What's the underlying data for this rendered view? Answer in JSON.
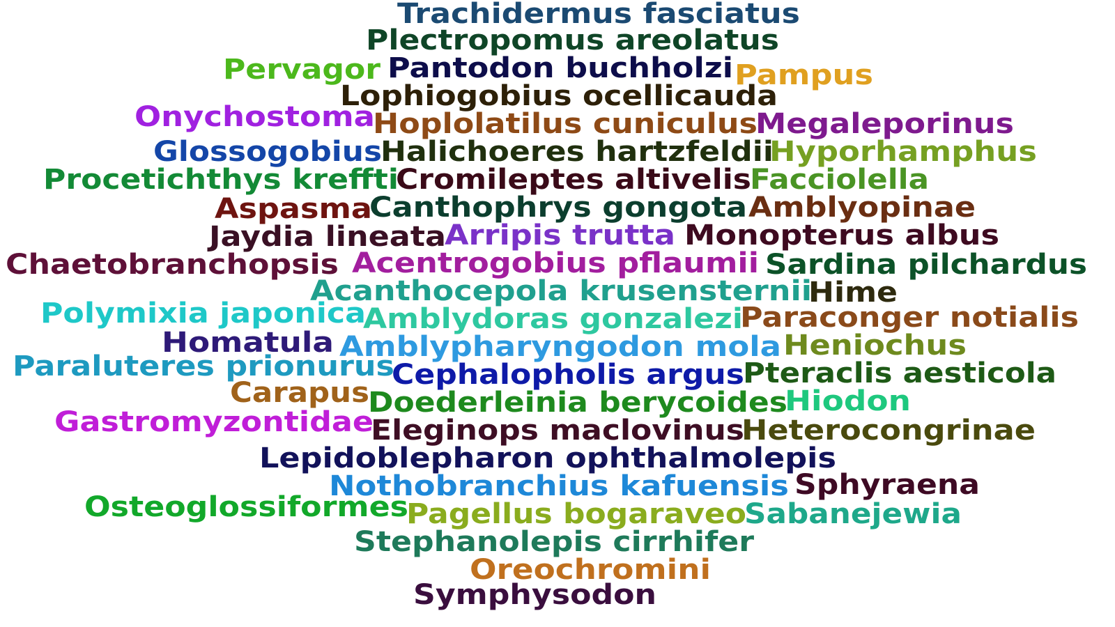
{
  "cloud": {
    "words": [
      {
        "text": "Trachidermus fasciatus",
        "color": "#1b4a72"
      },
      {
        "text": "Plectropomus areolatus",
        "color": "#0f4527"
      },
      {
        "text": "Pervagor",
        "color": "#4cb81c"
      },
      {
        "text": "Pantodon buchholzi",
        "color": "#0d0d4a"
      },
      {
        "text": "Pampus",
        "color": "#e0a020"
      },
      {
        "text": "Lophiogobius ocellicauda",
        "color": "#2d2008"
      },
      {
        "text": "Onychostoma",
        "color": "#a021e0"
      },
      {
        "text": "Hoplolatilus cuniculus",
        "color": "#8e4a16"
      },
      {
        "text": "Megaleporinus",
        "color": "#7e1a8e"
      },
      {
        "text": "Glossogobius",
        "color": "#1446a8"
      },
      {
        "text": "Halichoeres hartzfeldii",
        "color": "#20300e"
      },
      {
        "text": "Hyporhamphus",
        "color": "#76a022"
      },
      {
        "text": "Procetichthys kreffti",
        "color": "#138a36"
      },
      {
        "text": "Cromileptes altivelis",
        "color": "#3a0a18"
      },
      {
        "text": "Facciolella",
        "color": "#4a9424"
      },
      {
        "text": "Aspasma",
        "color": "#6e1410"
      },
      {
        "text": "Canthophrys gongota",
        "color": "#0c3e2e"
      },
      {
        "text": "Amblyopinae",
        "color": "#6a2e12"
      },
      {
        "text": "Jaydia lineata",
        "color": "#3a1024"
      },
      {
        "text": "Arripis trutta",
        "color": "#7a32c8"
      },
      {
        "text": "Monopterus albus",
        "color": "#3e0a20"
      },
      {
        "text": "Chaetobranchopsis",
        "color": "#5e1038"
      },
      {
        "text": "Acentrogobius pflaumii",
        "color": "#a21e9e"
      },
      {
        "text": "Sardina pilchardus",
        "color": "#0c5228"
      },
      {
        "text": "Acanthocepola krusensternii",
        "color": "#20a08e"
      },
      {
        "text": "Hime",
        "color": "#2e2a0e"
      },
      {
        "text": "Polymixia japonica",
        "color": "#1ec8c8"
      },
      {
        "text": "Amblydoras gonzalezi",
        "color": "#2ec8a0"
      },
      {
        "text": "Paraconger notialis",
        "color": "#8a4a1a"
      },
      {
        "text": "Homatula",
        "color": "#2e1a78"
      },
      {
        "text": "Amblypharyngodon mola",
        "color": "#2e9ae0"
      },
      {
        "text": "Heniochus",
        "color": "#6e8a1e"
      },
      {
        "text": "Paraluteres prionurus",
        "color": "#1e9ac0"
      },
      {
        "text": "Cephalopholis argus",
        "color": "#0e1aa8"
      },
      {
        "text": "Pteraclis aesticola",
        "color": "#1e5a16"
      },
      {
        "text": "Carapus",
        "color": "#a0621a"
      },
      {
        "text": "Doederleinia berycoides",
        "color": "#1e8a1e"
      },
      {
        "text": "Hiodon",
        "color": "#1ec87e"
      },
      {
        "text": "Gastromyzontidae",
        "color": "#c01ed8"
      },
      {
        "text": "Eleginops maclovinus",
        "color": "#3e0e24"
      },
      {
        "text": "Heterocongrinae",
        "color": "#4a4a0e"
      },
      {
        "text": "Lepidoblepharon ophthalmolepis",
        "color": "#12125a"
      },
      {
        "text": "Nothobranchius kafuensis",
        "color": "#1e88d8"
      },
      {
        "text": "Sphyraena",
        "color": "#3e0a24"
      },
      {
        "text": "Osteoglossiformes",
        "color": "#12a82a"
      },
      {
        "text": "Pagellus bogaraveo",
        "color": "#8aac1e"
      },
      {
        "text": "Sabanejewia",
        "color": "#1ea88a"
      },
      {
        "text": "Stephanolepis cirrhifer",
        "color": "#1e7a5a"
      },
      {
        "text": "Oreochromini",
        "color": "#c0701e"
      },
      {
        "text": "Symphysodon",
        "color": "#3a0e3e"
      }
    ]
  }
}
